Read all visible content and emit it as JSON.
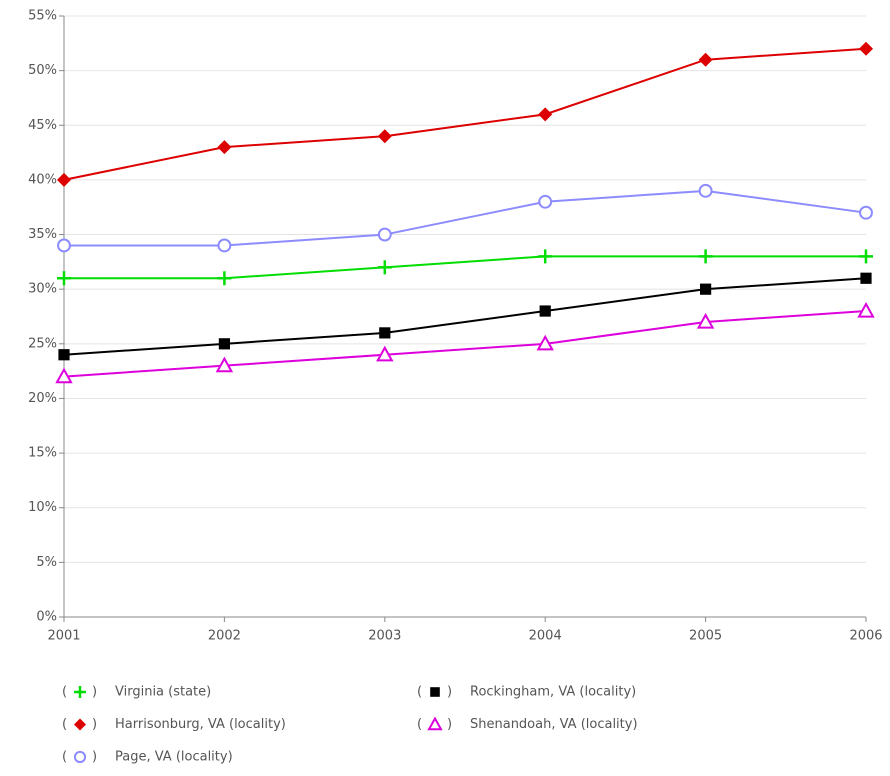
{
  "chart_data": {
    "type": "line",
    "x": [
      2001,
      2002,
      2003,
      2004,
      2005,
      2006
    ],
    "xlim": [
      2001,
      2006
    ],
    "xticks": [
      2001,
      2002,
      2003,
      2004,
      2005,
      2006
    ],
    "ylim": [
      0,
      55
    ],
    "yticks": [
      {
        "value": 0,
        "label": "0%"
      },
      {
        "value": 5,
        "label": "5%"
      },
      {
        "value": 10,
        "label": "10%"
      },
      {
        "value": 15,
        "label": "15%"
      },
      {
        "value": 20,
        "label": "20%"
      },
      {
        "value": 25,
        "label": "25%"
      },
      {
        "value": 30,
        "label": "30%"
      },
      {
        "value": 35,
        "label": "35%"
      },
      {
        "value": 40,
        "label": "40%"
      },
      {
        "value": 45,
        "label": "45%"
      },
      {
        "value": 50,
        "label": "50%"
      },
      {
        "value": 55,
        "label": "55%"
      }
    ],
    "grid": true,
    "legend": "bottom",
    "series": [
      {
        "name": "Virginia (state)",
        "color": "#00dd00",
        "marker": "plus",
        "values": [
          31,
          31,
          32,
          33,
          33,
          33
        ]
      },
      {
        "name": "Harrisonburg, VA (locality)",
        "color": "#dd0000",
        "marker": "diamond",
        "values": [
          40,
          43,
          44,
          46,
          51,
          52
        ]
      },
      {
        "name": "Page, VA (locality)",
        "color": "#8c8cff",
        "marker": "circle",
        "values": [
          34,
          34,
          35,
          38,
          39,
          37
        ]
      },
      {
        "name": "Rockingham, VA (locality)",
        "color": "#000000",
        "marker": "square",
        "values": [
          24,
          25,
          26,
          28,
          30,
          31
        ]
      },
      {
        "name": "Shenandoah, VA (locality)",
        "color": "#dd00dd",
        "marker": "triangle",
        "values": [
          22,
          23,
          24,
          25,
          27,
          28
        ]
      }
    ]
  }
}
